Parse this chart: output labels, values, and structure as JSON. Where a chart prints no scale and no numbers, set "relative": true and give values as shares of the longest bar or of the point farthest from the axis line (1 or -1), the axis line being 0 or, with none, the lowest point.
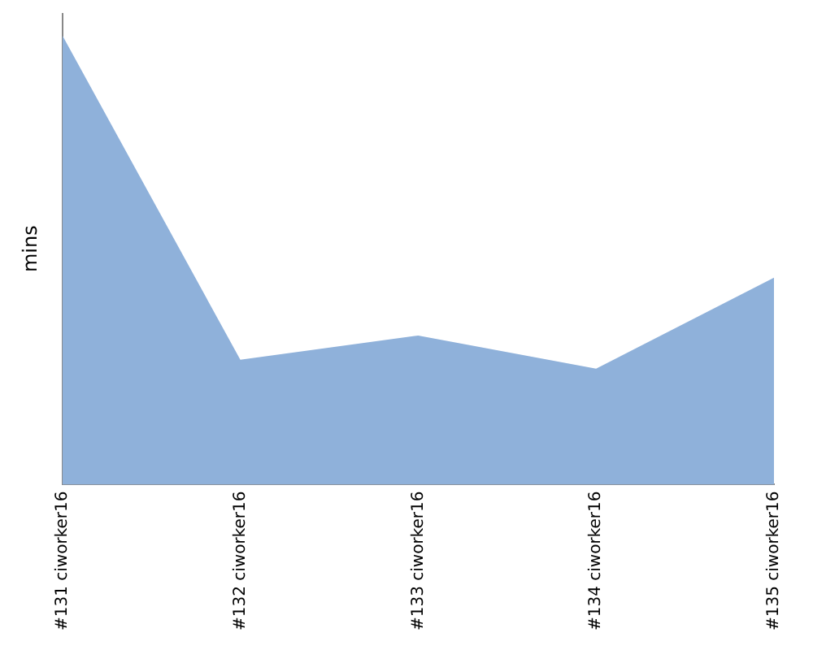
{
  "chart_data": {
    "type": "area",
    "ylabel": "mins",
    "relative": true,
    "categories": [
      "#131 ciworker16",
      "#132 ciworker16",
      "#133 ciworker16",
      "#134 ciworker16",
      "#135 ciworker16"
    ],
    "series": [
      {
        "color": "#8fb1da",
        "values": [
          1,
          0.278,
          0.332,
          0.258,
          0.461
        ]
      }
    ],
    "grid": false,
    "legend": false
  }
}
